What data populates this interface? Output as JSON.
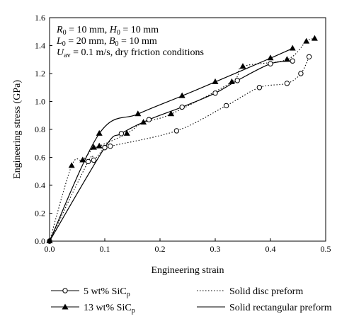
{
  "chart_data": {
    "type": "line",
    "xlabel": "Engineering strain",
    "ylabel": "Engineering stress (GPa)",
    "xlim": [
      0.0,
      0.5
    ],
    "ylim": [
      0.0,
      1.6
    ],
    "x_ticks": [
      0.0,
      0.1,
      0.2,
      0.3,
      0.4,
      0.5
    ],
    "y_ticks": [
      0.0,
      0.2,
      0.4,
      0.6,
      0.8,
      1.0,
      1.2,
      1.4,
      1.6
    ],
    "x_tick_labels": [
      "0.0",
      "0.1",
      "0.2",
      "0.3",
      "0.4",
      "0.5"
    ],
    "y_tick_labels": [
      "0.0",
      "0.2",
      "0.4",
      "0.6",
      "0.8",
      "1.0",
      "1.2",
      "1.4",
      "1.6"
    ],
    "grid": false,
    "annotation": [
      {
        "parts": [
          [
            "R",
            "i"
          ],
          [
            "0",
            "sub"
          ],
          [
            " = 10 mm, ",
            "n"
          ],
          [
            "H",
            "i"
          ],
          [
            "0",
            "sub"
          ],
          [
            " = 10 mm",
            "n"
          ]
        ]
      },
      {
        "parts": [
          [
            "L",
            "i"
          ],
          [
            "0",
            "sub"
          ],
          [
            " = 20 mm, ",
            "n"
          ],
          [
            "B",
            "i"
          ],
          [
            "0",
            "sub"
          ],
          [
            " = 10 mm",
            "n"
          ]
        ]
      },
      {
        "parts": [
          [
            "U",
            "i"
          ],
          [
            "av",
            "sub"
          ],
          [
            " = 0.1 m/s, dry friction conditions",
            "n"
          ]
        ]
      }
    ],
    "legend": {
      "placement": "bottom",
      "materials": [
        {
          "text": "5 wt% SiC",
          "sub": "p",
          "marker": "open-circle"
        },
        {
          "text": "13 wt% SiC",
          "sub": "p",
          "marker": "filled-triangle"
        }
      ],
      "preforms": [
        {
          "text": "Solid disc preform",
          "line": "dotted"
        },
        {
          "text": "Solid rectangular preform",
          "line": "solid"
        }
      ]
    },
    "series": [
      {
        "material": "5 wt% SiCp",
        "preform": "Solid disc preform",
        "marker": "open-circle",
        "line": "dotted",
        "x": [
          0.0,
          0.07,
          0.08,
          0.1,
          0.11,
          0.23,
          0.32,
          0.38,
          0.43,
          0.455,
          0.47
        ],
        "y": [
          0.0,
          0.57,
          0.58,
          0.67,
          0.68,
          0.79,
          0.97,
          1.1,
          1.13,
          1.2,
          1.32
        ]
      },
      {
        "material": "5 wt% SiCp",
        "preform": "Solid rectangular preform",
        "marker": "open-circle",
        "line": "solid",
        "x": [
          0.0,
          0.1,
          0.13,
          0.18,
          0.24,
          0.3,
          0.34,
          0.4,
          0.44
        ],
        "y": [
          0.0,
          0.67,
          0.77,
          0.87,
          0.96,
          1.06,
          1.15,
          1.27,
          1.29
        ]
      },
      {
        "material": "13 wt% SiCp",
        "preform": "Solid disc preform",
        "marker": "filled-triangle",
        "line": "dotted",
        "x": [
          0.0,
          0.04,
          0.06,
          0.08,
          0.09,
          0.14,
          0.17,
          0.22,
          0.33,
          0.35,
          0.43,
          0.465,
          0.48
        ],
        "y": [
          0.0,
          0.54,
          0.58,
          0.67,
          0.68,
          0.77,
          0.85,
          0.91,
          1.14,
          1.25,
          1.3,
          1.43,
          1.45
        ]
      },
      {
        "material": "13 wt% SiCp",
        "preform": "Solid rectangular preform",
        "marker": "filled-triangle",
        "line": "solid",
        "x": [
          0.0,
          0.09,
          0.16,
          0.24,
          0.3,
          0.4,
          0.44
        ],
        "y": [
          0.0,
          0.77,
          0.91,
          1.04,
          1.14,
          1.31,
          1.38
        ]
      }
    ]
  }
}
